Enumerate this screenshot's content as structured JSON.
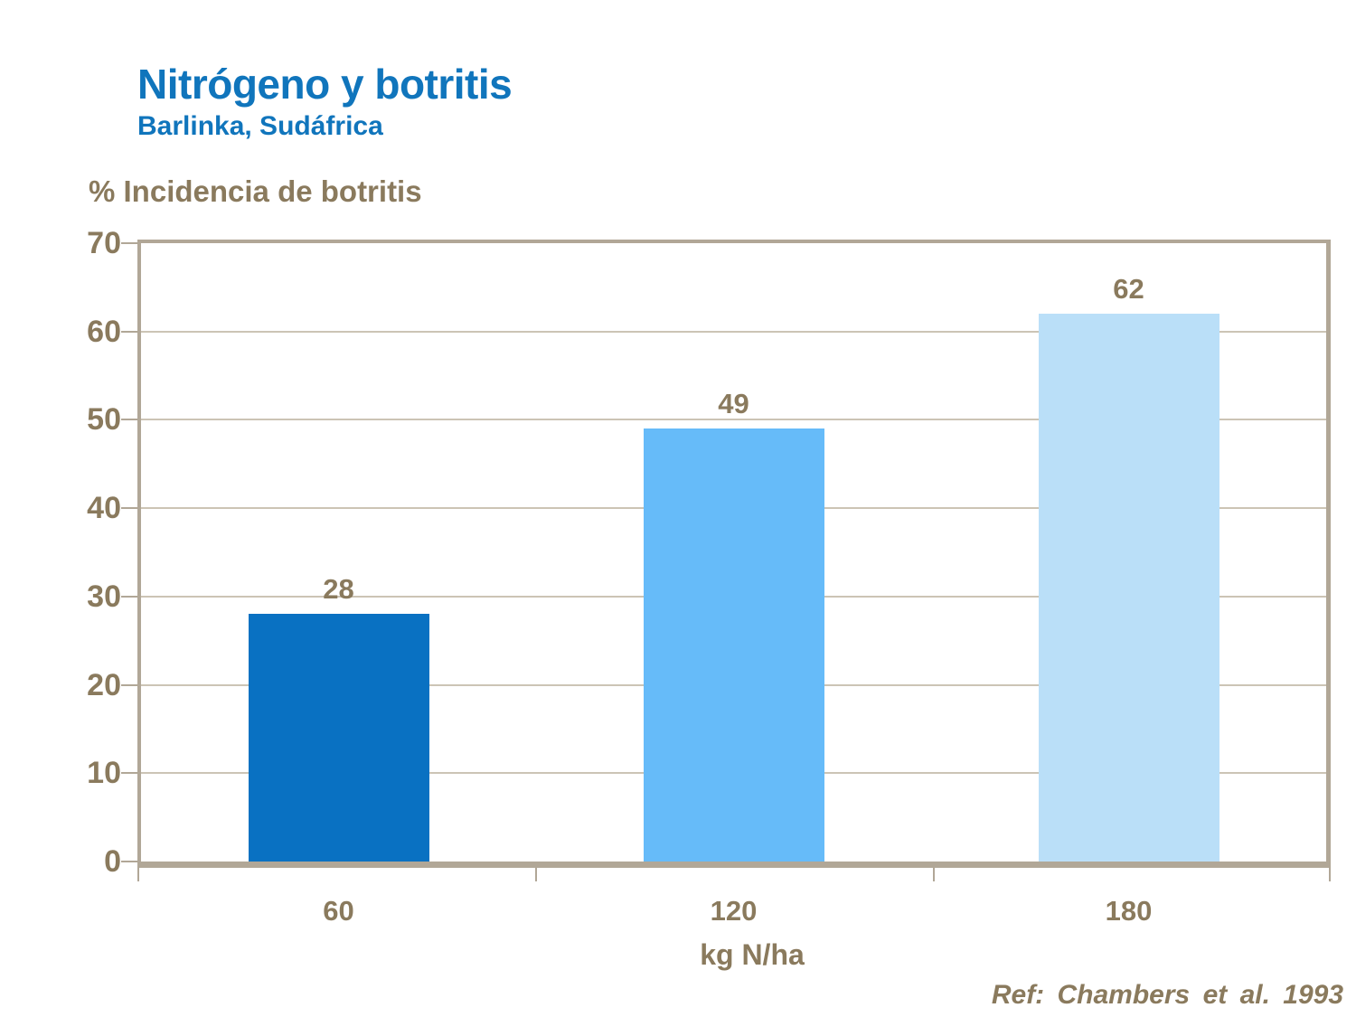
{
  "header": {
    "title": "Nitrógeno y botritis",
    "subtitle": "Barlinka, Sudáfrica"
  },
  "chart_data": {
    "type": "bar",
    "title": "Nitrógeno y botritis",
    "subtitle": "Barlinka, Sudáfrica",
    "categories": [
      "60",
      "120",
      "180"
    ],
    "values": [
      28,
      49,
      62
    ],
    "data_labels": [
      "28",
      "49",
      "62"
    ],
    "bar_colors": [
      "#0971C2",
      "#66BBF9",
      "#BADFF8"
    ],
    "xlabel": "kg N/ha",
    "ylabel": "% Incidencia de botritis",
    "ylim": [
      0,
      70
    ],
    "yticks": [
      0,
      10,
      20,
      30,
      40,
      50,
      60,
      70
    ],
    "grid": "horizontal",
    "legend_position": "none"
  },
  "footer": {
    "reference": "Ref: Chambers et al. 1993"
  },
  "colors": {
    "title_blue": "#1075BC",
    "text_brown": "#8A7A5D",
    "axis_frame": "#B1A797",
    "gridline": "#CCC4B5",
    "background": "#FFFFFF"
  }
}
